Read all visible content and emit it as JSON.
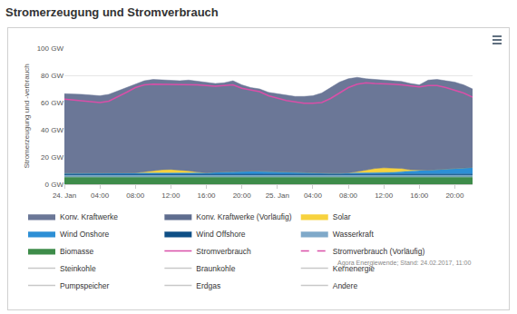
{
  "chart_data": {
    "type": "area",
    "title": "Stromerzeugung und Stromverbrauch",
    "y_label": "Stromerzeugung und -verbrauch",
    "annotations": [
      "Agora Energiewende; Stand: 24.02.2017, 11:00"
    ],
    "stacked": true,
    "grid": true,
    "legend": "bottom",
    "ylim": [
      0,
      100
    ],
    "yticks": [
      {
        "value": 0,
        "label": "0 GW"
      },
      {
        "value": 20,
        "label": "20 GW"
      },
      {
        "value": 40,
        "label": "40 GW"
      },
      {
        "value": 60,
        "label": "60 GW"
      },
      {
        "value": 80,
        "label": "80 GW"
      },
      {
        "value": 100,
        "label": "100 GW"
      }
    ],
    "categories": [
      "24. Jan",
      null,
      null,
      null,
      "04:00",
      null,
      null,
      null,
      "08:00",
      null,
      null,
      null,
      "12:00",
      null,
      null,
      null,
      "16:00",
      null,
      null,
      null,
      "20:00",
      null,
      null,
      null,
      "25. Jan",
      null,
      null,
      null,
      "04:00",
      null,
      null,
      null,
      "08:00",
      null,
      null,
      null,
      "12:00",
      null,
      null,
      null,
      "16:00",
      null,
      null,
      null,
      "20:00",
      null,
      null
    ],
    "series": [
      {
        "name": "Konv. Kraftwerke",
        "type": "area",
        "color": "#6b7797",
        "values": [
          58.4,
          58.4,
          57.9,
          57.4,
          56.9,
          57.9,
          60.4,
          62.9,
          65.6,
          66.9,
          67.0,
          65.8,
          65.1,
          65.4,
          66.6,
          66.5,
          66.6,
          65.1,
          65.3,
          66.6,
          63.4,
          61.3,
          60.4,
          58.1,
          57.3,
          56.5,
          56.0,
          56.2,
          56.8,
          58.9,
          62.9,
          66.9,
          69.1,
          69.2,
          66.9,
          65.4,
          64.9,
          64.5,
          63.9,
          63.3,
          62.7,
          66.1,
          66.2,
          64.8,
          63.4,
          61.0,
          57.6
        ]
      },
      {
        "name": "Konv. Kraftwerke (Vorläufig)",
        "type": "area",
        "color": "#5f6d8f",
        "values": [
          null,
          null,
          null,
          null,
          null,
          null,
          null,
          null,
          null,
          null,
          null,
          null,
          null,
          null,
          null,
          null,
          null,
          null,
          null,
          null,
          null,
          null,
          null,
          null,
          null,
          null,
          null,
          null,
          null,
          null,
          null,
          null,
          null,
          null,
          null,
          null,
          null,
          null,
          null,
          null,
          null,
          null,
          null,
          null,
          null,
          null,
          null
        ]
      },
      {
        "name": "Solar",
        "type": "area",
        "color": "#f7d23e",
        "values": [
          0,
          0,
          0,
          0,
          0,
          0,
          0,
          0,
          0.3,
          1.0,
          1.9,
          2.4,
          2.6,
          2.3,
          1.6,
          0.7,
          0.1,
          0,
          0,
          0,
          0,
          0,
          0,
          0,
          0,
          0,
          0,
          0,
          0,
          0,
          0,
          0,
          0.3,
          1.2,
          2.5,
          3.5,
          3.8,
          3.4,
          2.4,
          1.1,
          0.3,
          0,
          0,
          0,
          0,
          0,
          0
        ]
      },
      {
        "name": "Wind Onshore",
        "type": "area",
        "color": "#2d8fd5",
        "values": [
          0.8,
          0.8,
          0.8,
          0.8,
          0.8,
          0.8,
          0.8,
          0.8,
          0.8,
          0.8,
          0.8,
          1.0,
          1.0,
          1.0,
          1.0,
          1.0,
          1.0,
          1.3,
          1.6,
          1.8,
          2.0,
          2.1,
          2.0,
          1.8,
          1.6,
          1.4,
          1.2,
          1.0,
          0.9,
          0.8,
          0.8,
          0.8,
          0.8,
          0.8,
          0.8,
          0.8,
          1.0,
          1.3,
          1.7,
          2.1,
          2.5,
          2.9,
          3.3,
          3.7,
          4.1,
          4.5,
          4.9
        ]
      },
      {
        "name": "Wind Offshore",
        "type": "area",
        "color": "#0e4f86",
        "values": [
          0.6,
          0.6,
          0.6,
          0.6,
          0.6,
          0.6,
          0.6,
          0.6,
          0.6,
          0.6,
          0.6,
          0.6,
          0.6,
          0.6,
          0.6,
          0.6,
          0.6,
          0.9,
          0.9,
          0.9,
          0.9,
          0.9,
          0.9,
          0.9,
          0.9,
          0.9,
          0.6,
          0.6,
          0.6,
          0.6,
          0.6,
          0.6,
          0.6,
          0.6,
          0.6,
          0.6,
          0.6,
          0.6,
          0.8,
          0.8,
          0.8,
          0.8,
          0.8,
          0.8,
          0.8,
          0.8,
          0.8
        ]
      },
      {
        "name": "Wasserkraft",
        "type": "area",
        "color": "#7fa9c9",
        "values": [
          1.5,
          1.5,
          1.5,
          1.5,
          1.5,
          1.5,
          1.5,
          1.5,
          1.5,
          1.5,
          1.5,
          1.5,
          1.5,
          1.5,
          1.5,
          1.5,
          1.5,
          1.5,
          1.5,
          1.5,
          1.5,
          1.5,
          1.5,
          1.5,
          1.5,
          1.5,
          1.5,
          1.5,
          1.5,
          1.5,
          1.5,
          1.5,
          1.5,
          1.5,
          1.5,
          1.5,
          1.5,
          1.5,
          1.5,
          1.5,
          1.5,
          1.5,
          1.5,
          1.5,
          1.5,
          1.5,
          1.5
        ]
      },
      {
        "name": "Biomasse",
        "type": "area",
        "color": "#3e8c4a",
        "values": [
          5.2,
          5.2,
          5.2,
          5.2,
          5.2,
          5.2,
          5.2,
          5.2,
          5.2,
          5.2,
          5.2,
          5.2,
          5.2,
          5.2,
          5.2,
          5.2,
          5.2,
          5.2,
          5.2,
          5.2,
          5.2,
          5.2,
          5.2,
          5.2,
          5.2,
          5.2,
          5.2,
          5.2,
          5.2,
          5.2,
          5.2,
          5.2,
          5.2,
          5.2,
          5.2,
          5.2,
          5.2,
          5.2,
          5.2,
          5.2,
          5.2,
          5.2,
          5.2,
          5.2,
          5.2,
          5.2,
          5.2
        ]
      },
      {
        "name": "Stromverbrauch",
        "type": "line",
        "color": "#d94fa8",
        "values": [
          62.5,
          62,
          61,
          60.5,
          60,
          61,
          64,
          67.5,
          71,
          73,
          73.5,
          73.5,
          73.5,
          73,
          73,
          73,
          72.5,
          72,
          72.5,
          73,
          70.5,
          69,
          68,
          65,
          63,
          61.5,
          60.5,
          59.5,
          59.5,
          60,
          63,
          67,
          71,
          73.5,
          74.5,
          74,
          74,
          73.5,
          73,
          72,
          71.5,
          72.5,
          72.5,
          71,
          69,
          67,
          64
        ]
      },
      {
        "name": "Stromverbrauch (Vorläufig)",
        "type": "line",
        "line_style": "dashed",
        "color": "#d94fa8",
        "values": [
          null,
          null,
          null,
          null,
          null,
          null,
          null,
          null,
          null,
          null,
          null,
          null,
          null,
          null,
          null,
          null,
          null,
          null,
          null,
          null,
          null,
          null,
          null,
          null,
          null,
          null,
          null,
          null,
          null,
          null,
          null,
          null,
          null,
          null,
          null,
          null,
          null,
          null,
          null,
          null,
          null,
          null,
          null,
          null,
          null,
          null,
          null
        ]
      },
      {
        "name": "Steinkohle",
        "type": "line",
        "color": "#c8c8c8",
        "values": [
          null,
          null,
          null,
          null,
          null,
          null,
          null,
          null,
          null,
          null,
          null,
          null,
          null,
          null,
          null,
          null,
          null,
          null,
          null,
          null,
          null,
          null,
          null,
          null,
          null,
          null,
          null,
          null,
          null,
          null,
          null,
          null,
          null,
          null,
          null,
          null,
          null,
          null,
          null,
          null,
          null,
          null,
          null,
          null,
          null,
          null,
          null
        ]
      },
      {
        "name": "Braunkohle",
        "type": "line",
        "color": "#c8c8c8",
        "values": [
          null,
          null,
          null,
          null,
          null,
          null,
          null,
          null,
          null,
          null,
          null,
          null,
          null,
          null,
          null,
          null,
          null,
          null,
          null,
          null,
          null,
          null,
          null,
          null,
          null,
          null,
          null,
          null,
          null,
          null,
          null,
          null,
          null,
          null,
          null,
          null,
          null,
          null,
          null,
          null,
          null,
          null,
          null,
          null,
          null,
          null,
          null
        ]
      },
      {
        "name": "Kernenergie",
        "type": "line",
        "color": "#c8c8c8",
        "values": [
          null,
          null,
          null,
          null,
          null,
          null,
          null,
          null,
          null,
          null,
          null,
          null,
          null,
          null,
          null,
          null,
          null,
          null,
          null,
          null,
          null,
          null,
          null,
          null,
          null,
          null,
          null,
          null,
          null,
          null,
          null,
          null,
          null,
          null,
          null,
          null,
          null,
          null,
          null,
          null,
          null,
          null,
          null,
          null,
          null,
          null,
          null
        ]
      },
      {
        "name": "Pumpspeicher",
        "type": "line",
        "color": "#c8c8c8",
        "values": [
          null,
          null,
          null,
          null,
          null,
          null,
          null,
          null,
          null,
          null,
          null,
          null,
          null,
          null,
          null,
          null,
          null,
          null,
          null,
          null,
          null,
          null,
          null,
          null,
          null,
          null,
          null,
          null,
          null,
          null,
          null,
          null,
          null,
          null,
          null,
          null,
          null,
          null,
          null,
          null,
          null,
          null,
          null,
          null,
          null,
          null,
          null
        ]
      },
      {
        "name": "Erdgas",
        "type": "line",
        "color": "#c8c8c8",
        "values": [
          null,
          null,
          null,
          null,
          null,
          null,
          null,
          null,
          null,
          null,
          null,
          null,
          null,
          null,
          null,
          null,
          null,
          null,
          null,
          null,
          null,
          null,
          null,
          null,
          null,
          null,
          null,
          null,
          null,
          null,
          null,
          null,
          null,
          null,
          null,
          null,
          null,
          null,
          null,
          null,
          null,
          null,
          null,
          null,
          null,
          null,
          null
        ]
      },
      {
        "name": "Andere",
        "type": "line",
        "color": "#c8c8c8",
        "values": [
          null,
          null,
          null,
          null,
          null,
          null,
          null,
          null,
          null,
          null,
          null,
          null,
          null,
          null,
          null,
          null,
          null,
          null,
          null,
          null,
          null,
          null,
          null,
          null,
          null,
          null,
          null,
          null,
          null,
          null,
          null,
          null,
          null,
          null,
          null,
          null,
          null,
          null,
          null,
          null,
          null,
          null,
          null,
          null,
          null,
          null,
          null
        ]
      }
    ]
  }
}
